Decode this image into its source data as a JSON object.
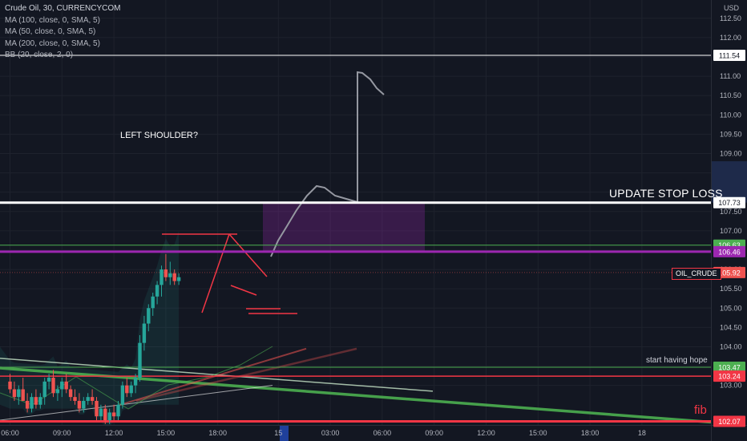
{
  "legend": {
    "symbol": "Crude Oil, 30, CURRENCYCOM",
    "indicators": [
      "MA (100, close, 0, SMA, 5)",
      "MA (50, close, 0, SMA, 5)",
      "MA (200, close, 0, SMA, 5)",
      "BB (20, close, 2, 0)"
    ]
  },
  "currency_label": "USD",
  "annotations": {
    "left_shoulder": "LEFT SHOULDER?",
    "update_stop_loss": "UPDATE STOP LOSS",
    "start_having_hope": "start having hope",
    "fib": "fib",
    "symbol_tag": "OIL_CRUDE"
  },
  "colors": {
    "background": "#131722",
    "up": "#26a69a",
    "down": "#ef5350",
    "purple": "#9c27b0",
    "white_line": "#ffffff",
    "green_line": "#4caf50",
    "red_line": "#f23645"
  },
  "chart_data": {
    "type": "candlestick",
    "y_axis": {
      "min": 102.0,
      "max": 112.7,
      "ticks": [
        103.0,
        103.5,
        104.0,
        104.5,
        105.0,
        105.5,
        106.0,
        106.5,
        107.0,
        107.5,
        108.0,
        108.5,
        109.0,
        109.5,
        110.0,
        110.5,
        111.0,
        111.5,
        112.0,
        112.5
      ],
      "tick_labels": [
        "103.00",
        "103.50",
        "104.00",
        "104.50",
        "105.00",
        "105.50",
        "106.00",
        "106.50",
        "107.00",
        "107.50",
        "108.00",
        "108.50",
        "109.00",
        "109.50",
        "110.00",
        "110.50",
        "111.00",
        "111.50",
        "112.00",
        "112.50"
      ]
    },
    "x_axis": {
      "labels": [
        {
          "bar": 0,
          "text": "06:00"
        },
        {
          "bar": 12,
          "text": "09:00"
        },
        {
          "bar": 24,
          "text": "12:00"
        },
        {
          "bar": 36,
          "text": "15:00"
        },
        {
          "bar": 48,
          "text": "18:00"
        },
        {
          "bar": 62,
          "text": "15"
        },
        {
          "bar": 74,
          "text": "03:00"
        },
        {
          "bar": 86,
          "text": "06:00"
        },
        {
          "bar": 98,
          "text": "09:00"
        },
        {
          "bar": 110,
          "text": "12:00"
        },
        {
          "bar": 122,
          "text": "15:00"
        },
        {
          "bar": 134,
          "text": "18:00"
        },
        {
          "bar": 146,
          "text": "18"
        }
      ]
    },
    "candles": [
      {
        "o": 103.1,
        "h": 103.3,
        "l": 102.8,
        "c": 102.9
      },
      {
        "o": 102.9,
        "h": 103.1,
        "l": 102.6,
        "c": 102.7
      },
      {
        "o": 102.7,
        "h": 103.0,
        "l": 102.5,
        "c": 102.9
      },
      {
        "o": 102.9,
        "h": 103.2,
        "l": 102.6,
        "c": 102.6
      },
      {
        "o": 102.6,
        "h": 102.8,
        "l": 102.3,
        "c": 102.4
      },
      {
        "o": 102.4,
        "h": 102.8,
        "l": 102.3,
        "c": 102.7
      },
      {
        "o": 102.7,
        "h": 102.9,
        "l": 102.4,
        "c": 102.5
      },
      {
        "o": 102.5,
        "h": 102.8,
        "l": 102.4,
        "c": 102.7
      },
      {
        "o": 102.7,
        "h": 103.2,
        "l": 102.5,
        "c": 103.1
      },
      {
        "o": 103.1,
        "h": 103.3,
        "l": 102.9,
        "c": 103.2
      },
      {
        "o": 103.2,
        "h": 103.4,
        "l": 102.7,
        "c": 102.8
      },
      {
        "o": 102.8,
        "h": 103.0,
        "l": 102.6,
        "c": 102.9
      },
      {
        "o": 102.9,
        "h": 103.2,
        "l": 102.7,
        "c": 103.1
      },
      {
        "o": 103.1,
        "h": 103.3,
        "l": 102.8,
        "c": 102.9
      },
      {
        "o": 102.9,
        "h": 103.0,
        "l": 102.6,
        "c": 102.7
      },
      {
        "o": 102.7,
        "h": 102.9,
        "l": 102.5,
        "c": 102.6
      },
      {
        "o": 102.6,
        "h": 102.8,
        "l": 102.3,
        "c": 102.4
      },
      {
        "o": 102.4,
        "h": 102.7,
        "l": 102.3,
        "c": 102.6
      },
      {
        "o": 102.6,
        "h": 102.8,
        "l": 102.5,
        "c": 102.7
      },
      {
        "o": 102.7,
        "h": 102.9,
        "l": 102.5,
        "c": 102.6
      },
      {
        "o": 102.6,
        "h": 102.7,
        "l": 102.1,
        "c": 102.2
      },
      {
        "o": 102.2,
        "h": 102.5,
        "l": 102.1,
        "c": 102.4
      },
      {
        "o": 102.4,
        "h": 102.5,
        "l": 102.0,
        "c": 102.1
      },
      {
        "o": 102.1,
        "h": 102.4,
        "l": 102.0,
        "c": 102.3
      },
      {
        "o": 102.3,
        "h": 102.5,
        "l": 102.1,
        "c": 102.2
      },
      {
        "o": 102.2,
        "h": 102.6,
        "l": 102.1,
        "c": 102.5
      },
      {
        "o": 102.5,
        "h": 103.1,
        "l": 102.4,
        "c": 103.0
      },
      {
        "o": 103.0,
        "h": 103.2,
        "l": 102.7,
        "c": 102.8
      },
      {
        "o": 102.8,
        "h": 103.1,
        "l": 102.7,
        "c": 103.0
      },
      {
        "o": 103.0,
        "h": 103.3,
        "l": 102.8,
        "c": 103.2
      },
      {
        "o": 103.2,
        "h": 104.3,
        "l": 103.1,
        "c": 104.1
      },
      {
        "o": 104.1,
        "h": 104.8,
        "l": 103.9,
        "c": 104.6
      },
      {
        "o": 104.6,
        "h": 105.1,
        "l": 104.4,
        "c": 105.0
      },
      {
        "o": 105.0,
        "h": 105.4,
        "l": 104.8,
        "c": 105.3
      },
      {
        "o": 105.3,
        "h": 105.7,
        "l": 105.1,
        "c": 105.6
      },
      {
        "o": 105.6,
        "h": 106.1,
        "l": 105.3,
        "c": 106.0
      },
      {
        "o": 106.0,
        "h": 106.4,
        "l": 105.7,
        "c": 105.8
      },
      {
        "o": 105.8,
        "h": 106.2,
        "l": 105.6,
        "c": 105.9
      },
      {
        "o": 105.9,
        "h": 106.0,
        "l": 105.6,
        "c": 105.7
      },
      {
        "o": 105.7,
        "h": 105.9,
        "l": 105.6,
        "c": 105.8
      }
    ],
    "horizontal_levels": [
      {
        "price": 111.54,
        "label": "111.54",
        "color": "#ffffff",
        "label_bg": "#ffffff",
        "label_fg": "#131722"
      },
      {
        "price": 107.73,
        "label": "107.73",
        "color": "#ffffff",
        "label_bg": "#ffffff",
        "label_fg": "#131722"
      },
      {
        "price": 106.63,
        "label": "106.63",
        "color": "#4caf50",
        "label_bg": "#4caf50",
        "label_fg": "#ffffff"
      },
      {
        "price": 106.46,
        "label": "106.46",
        "color": "#9c27b0",
        "label_bg": "#9c27b0",
        "label_fg": "#ffffff"
      },
      {
        "price": 105.92,
        "label": "105.92",
        "color": "#ef5350",
        "label_bg": "#ef5350",
        "label_fg": "#ffffff"
      },
      {
        "price": 103.47,
        "label": "103.47",
        "color": "#4caf50",
        "label_bg": "#4caf50",
        "label_fg": "#ffffff"
      },
      {
        "price": 103.24,
        "label": "103.24",
        "color": "#f23645",
        "label_bg": "#f23645",
        "label_fg": "#ffffff"
      },
      {
        "price": 102.07,
        "label": "102.07",
        "color": "#f23645",
        "label_bg": "#f23645",
        "label_fg": "#ffffff"
      }
    ]
  }
}
